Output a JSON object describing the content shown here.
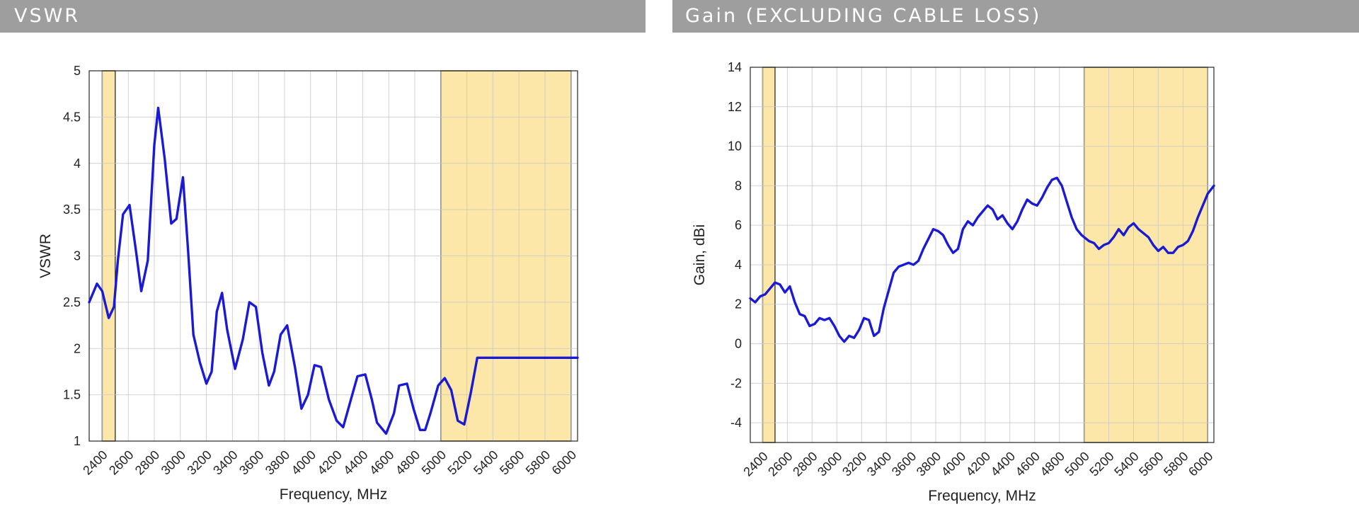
{
  "chart_data": [
    {
      "type": "line",
      "title": "VSWR",
      "xlabel": "Frequency, MHz",
      "ylabel": "VSWR",
      "xlim": [
        2300,
        6050
      ],
      "ylim": [
        1,
        5
      ],
      "grid": true,
      "series_color": "#1a1ad6",
      "band_color": "#fde7a8",
      "xticks": [
        2400,
        2600,
        2800,
        3000,
        3200,
        3400,
        3600,
        3800,
        4000,
        4200,
        4400,
        4600,
        4800,
        5000,
        5200,
        5400,
        5600,
        5800,
        6000
      ],
      "yticks": [
        1,
        1.5,
        2,
        2.5,
        3,
        3.5,
        4,
        4.5,
        5
      ],
      "ytick_labels": [
        "1",
        "1.5",
        "2",
        "2.5",
        "3",
        "3.5",
        "4",
        "4.5",
        "5"
      ],
      "highlight_bands": [
        [
          2400,
          2500
        ],
        [
          5000,
          6000
        ]
      ],
      "series": [
        {
          "name": "VSWR",
          "x": [
            2300,
            2360,
            2400,
            2450,
            2490,
            2520,
            2560,
            2610,
            2660,
            2700,
            2750,
            2800,
            2830,
            2880,
            2930,
            2970,
            3020,
            3060,
            3100,
            3150,
            3200,
            3240,
            3280,
            3320,
            3360,
            3420,
            3480,
            3530,
            3580,
            3630,
            3680,
            3720,
            3770,
            3820,
            3880,
            3930,
            3980,
            4030,
            4080,
            4140,
            4200,
            4250,
            4310,
            4360,
            4420,
            4470,
            4510,
            4580,
            4640,
            4680,
            4740,
            4790,
            4840,
            4880,
            4920,
            4980,
            5030,
            5080,
            5130,
            5180,
            5230,
            5280,
            5330,
            5390,
            5440,
            5490,
            5540,
            5580,
            5630,
            5680,
            5730,
            5780,
            5830,
            5870,
            5920,
            5960,
            6000,
            6050
          ],
          "y": [
            2.5,
            2.7,
            2.62,
            2.33,
            2.45,
            2.95,
            3.45,
            3.55,
            3.05,
            2.62,
            2.95,
            4.2,
            4.6,
            4.05,
            3.35,
            3.4,
            3.85,
            3.05,
            2.15,
            1.85,
            1.62,
            1.75,
            2.4,
            2.6,
            2.2,
            1.78,
            2.1,
            2.5,
            2.45,
            1.95,
            1.6,
            1.75,
            2.15,
            2.25,
            1.8,
            1.35,
            1.5,
            1.82,
            1.8,
            1.45,
            1.22,
            1.15,
            1.45,
            1.7,
            1.72,
            1.45,
            1.2,
            1.08,
            1.3,
            1.6,
            1.62,
            1.35,
            1.12,
            1.12,
            1.3,
            1.6,
            1.68,
            1.55,
            1.22,
            1.18,
            1.52,
            1.9,
            1.9,
            1.9,
            1.9,
            1.9,
            1.9,
            1.9,
            1.9,
            1.9,
            1.9,
            1.9,
            1.9,
            1.9,
            1.9,
            1.9,
            1.9,
            1.9
          ]
        }
      ]
    },
    {
      "type": "line",
      "title": "Gain (EXCLUDING CABLE LOSS)",
      "xlabel": "Frequency, MHz",
      "ylabel": "Gain, dBi",
      "xlim": [
        2300,
        6050
      ],
      "ylim": [
        -5,
        14
      ],
      "grid": true,
      "series_color": "#1a1ad6",
      "band_color": "#fde7a8",
      "xticks": [
        2400,
        2600,
        2800,
        3000,
        3200,
        3400,
        3600,
        3800,
        4000,
        4200,
        4400,
        4600,
        4800,
        5000,
        5200,
        5400,
        5600,
        5800,
        6000
      ],
      "yticks": [
        -4,
        -2,
        0,
        2,
        4,
        6,
        8,
        10,
        12,
        14
      ],
      "ytick_labels": [
        "-4",
        "-2",
        "0",
        "2",
        "4",
        "6",
        "8",
        "10",
        "12",
        "14"
      ],
      "highlight_bands": [
        [
          2400,
          2500
        ],
        [
          5000,
          6000
        ]
      ],
      "series": [
        {
          "name": "Gain",
          "x": [
            2300,
            2340,
            2380,
            2420,
            2460,
            2500,
            2540,
            2580,
            2620,
            2660,
            2700,
            2740,
            2780,
            2820,
            2860,
            2900,
            2940,
            2980,
            3020,
            3060,
            3100,
            3140,
            3180,
            3220,
            3260,
            3300,
            3340,
            3380,
            3420,
            3460,
            3500,
            3540,
            3580,
            3620,
            3660,
            3700,
            3740,
            3780,
            3820,
            3860,
            3900,
            3940,
            3980,
            4020,
            4060,
            4100,
            4140,
            4180,
            4220,
            4260,
            4300,
            4340,
            4380,
            4420,
            4460,
            4500,
            4540,
            4580,
            4620,
            4660,
            4700,
            4740,
            4780,
            4820,
            4860,
            4900,
            4940,
            4980,
            5000,
            5040,
            5080,
            5120,
            5160,
            5200,
            5240,
            5280,
            5320,
            5360,
            5400,
            5440,
            5480,
            5520,
            5560,
            5600,
            5640,
            5680,
            5720,
            5760,
            5800,
            5840,
            5880,
            5920,
            5960,
            6000,
            6050
          ],
          "y": [
            2.3,
            2.1,
            2.4,
            2.5,
            2.8,
            3.1,
            3.0,
            2.6,
            2.9,
            2.1,
            1.5,
            1.4,
            0.9,
            1.0,
            1.3,
            1.2,
            1.3,
            0.9,
            0.4,
            0.1,
            0.4,
            0.3,
            0.7,
            1.3,
            1.2,
            0.4,
            0.6,
            1.8,
            2.7,
            3.6,
            3.9,
            4.0,
            4.1,
            4.0,
            4.2,
            4.8,
            5.3,
            5.8,
            5.7,
            5.5,
            5.0,
            4.6,
            4.8,
            5.8,
            6.2,
            6.0,
            6.4,
            6.7,
            7.0,
            6.8,
            6.3,
            6.5,
            6.1,
            5.8,
            6.2,
            6.8,
            7.3,
            7.1,
            7.0,
            7.4,
            7.9,
            8.3,
            8.4,
            8.0,
            7.2,
            6.4,
            5.8,
            5.5,
            5.4,
            5.2,
            5.1,
            4.8,
            5.0,
            5.1,
            5.4,
            5.8,
            5.5,
            5.9,
            6.1,
            5.8,
            5.6,
            5.4,
            5.0,
            4.7,
            4.9,
            4.6,
            4.6,
            4.9,
            5.0,
            5.2,
            5.7,
            6.4,
            7.0,
            7.6,
            8.0
          ]
        }
      ]
    }
  ],
  "headers": {
    "left": "VSWR",
    "right": "Gain (EXCLUDING CABLE LOSS)"
  }
}
